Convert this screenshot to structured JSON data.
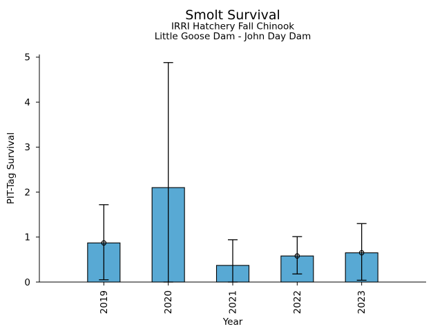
{
  "chart_data": {
    "type": "bar",
    "title": "Smolt Survival",
    "subtitle1": "IRRI Hatchery Fall Chinook",
    "subtitle2": "Little Goose Dam - John Day Dam",
    "xlabel": "Year",
    "ylabel": "PIT-Tag Survival",
    "categories": [
      "2019",
      "2020",
      "2021",
      "2022",
      "2023"
    ],
    "values": [
      0.87,
      2.1,
      0.37,
      0.58,
      0.65
    ],
    "error_low": [
      0.05,
      0.0,
      0.0,
      0.18,
      0.04
    ],
    "error_high": [
      1.72,
      4.88,
      0.94,
      1.01,
      1.3
    ],
    "point_markers": [
      true,
      false,
      false,
      true,
      true
    ],
    "yticks": [
      "0",
      "1",
      "2",
      "3",
      "4",
      "5"
    ],
    "ylim": [
      0,
      5.06
    ],
    "grid": false,
    "legend": "none",
    "bar_color": "#58A9D4",
    "edge_color": "#000000",
    "error_color": "#000000",
    "text_color": "#000000",
    "background_color": "#ffffff"
  }
}
